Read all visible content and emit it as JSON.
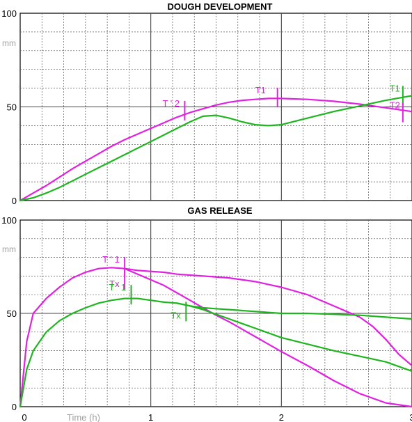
{
  "chart_data": [
    {
      "type": "line",
      "title": "DOUGH DEVELOPMENT",
      "ylabel": "mm",
      "ylim": [
        0,
        100
      ],
      "xlim": [
        0,
        3
      ],
      "y_tick_labels": [
        "0",
        "50",
        "100"
      ],
      "grid": true,
      "series": [
        {
          "color": "#e022e0",
          "x": [
            0,
            0.1,
            0.2,
            0.3,
            0.4,
            0.5,
            0.6,
            0.7,
            0.8,
            0.9,
            1.0,
            1.1,
            1.2,
            1.3,
            1.4,
            1.5,
            1.6,
            1.7,
            1.8,
            1.9,
            2.0,
            2.2,
            2.4,
            2.6,
            2.8,
            3.0
          ],
          "y": [
            0,
            4,
            8,
            12.5,
            17,
            21,
            25,
            29,
            32.5,
            35.5,
            38.5,
            41.5,
            44.5,
            47,
            49,
            51,
            52.5,
            53.5,
            54,
            54.5,
            54.5,
            54,
            53,
            51.5,
            49.5,
            47.5
          ]
        },
        {
          "color": "#1fb51f",
          "x": [
            0,
            0.1,
            0.2,
            0.3,
            0.4,
            0.5,
            0.6,
            0.7,
            0.8,
            0.9,
            1.0,
            1.1,
            1.2,
            1.3,
            1.4,
            1.5,
            1.6,
            1.7,
            1.8,
            1.9,
            2.0,
            2.2,
            2.4,
            2.6,
            2.8,
            3.0
          ],
          "y": [
            0,
            1.5,
            4,
            7,
            10.5,
            14,
            17.5,
            21,
            24.5,
            28,
            31.5,
            35,
            38.5,
            42,
            45,
            45.5,
            44,
            42,
            40.5,
            40,
            40.5,
            44,
            47.5,
            50.5,
            53.5,
            56
          ]
        }
      ],
      "annotations": [
        {
          "text": "T ' 2",
          "color": "#e022e0",
          "x": 1.26,
          "y": 48
        },
        {
          "text": "T1",
          "color": "#e022e0",
          "x": 1.97,
          "y": 55
        },
        {
          "text": "T1",
          "color": "#1fb51f",
          "x": 2.93,
          "y": 56
        },
        {
          "text": "T2",
          "color": "#e022e0",
          "x": 2.93,
          "y": 47
        }
      ]
    },
    {
      "type": "line",
      "title": "GAS RELEASE",
      "ylabel": "mm",
      "xlabel": "Time (h)",
      "ylim": [
        0,
        100
      ],
      "xlim": [
        0,
        3
      ],
      "x_tick_labels": [
        "0",
        "1",
        "2",
        "3"
      ],
      "y_tick_labels": [
        "0",
        "50",
        "100"
      ],
      "grid": true,
      "series": [
        {
          "color": "#e022e0",
          "x": [
            0,
            0.05,
            0.1,
            0.2,
            0.3,
            0.4,
            0.5,
            0.6,
            0.7,
            0.8,
            0.9,
            1.0,
            1.1,
            1.2,
            1.4,
            1.6,
            1.8,
            2.0,
            2.2,
            2.4,
            2.6,
            2.7,
            2.8,
            2.9,
            3.0
          ],
          "y": [
            0,
            35,
            50,
            58,
            64,
            69,
            72,
            74,
            74.5,
            74,
            73,
            72.5,
            72,
            71,
            70,
            69,
            67,
            64,
            60,
            54,
            48,
            43,
            36,
            28,
            22
          ]
        },
        {
          "color": "#e022e0",
          "x": [
            0.8,
            0.9,
            1.0,
            1.1,
            1.2,
            1.3,
            1.4,
            1.5,
            1.6,
            1.7,
            1.8,
            1.9,
            2.0,
            2.2,
            2.4,
            2.6,
            2.8,
            3.0
          ],
          "y": [
            74,
            71,
            68,
            65,
            61,
            57,
            53,
            49,
            45.5,
            41.5,
            37.5,
            33.5,
            29.5,
            22,
            14,
            7,
            2,
            0
          ]
        },
        {
          "color": "#1fb51f",
          "x": [
            0,
            0.05,
            0.1,
            0.2,
            0.3,
            0.4,
            0.5,
            0.6,
            0.7,
            0.8,
            0.9,
            1.0,
            1.1,
            1.2,
            1.3,
            1.4,
            1.5,
            1.6,
            1.8,
            2.0,
            2.2,
            2.4,
            2.6,
            2.8,
            3.0
          ],
          "y": [
            0,
            20,
            30,
            40,
            46,
            50,
            53,
            55.5,
            57,
            58,
            58,
            57,
            56,
            55.5,
            54,
            53,
            52.5,
            52,
            51,
            50,
            50,
            49.5,
            49,
            48,
            47
          ]
        },
        {
          "color": "#1fb51f",
          "x": [
            1.2,
            1.3,
            1.4,
            1.5,
            1.6,
            1.7,
            1.8,
            1.9,
            2.0,
            2.2,
            2.4,
            2.6,
            2.8,
            3.0
          ],
          "y": [
            55.5,
            54,
            52,
            49.5,
            47,
            44.5,
            42,
            39.5,
            37,
            33.5,
            30,
            27,
            24,
            19
          ]
        }
      ],
      "annotations": [
        {
          "text": "T ' 1",
          "color": "#e022e0",
          "x": 0.8,
          "y": 75
        },
        {
          "text": "Tx",
          "color": "#e022e0",
          "x": 0.8,
          "y": 68
        },
        {
          "text": "T ' 1",
          "color": "#1fb51f",
          "x": 0.85,
          "y": 60
        },
        {
          "text": "Tx",
          "color": "#1fb51f",
          "x": 1.27,
          "y": 51
        }
      ]
    }
  ]
}
